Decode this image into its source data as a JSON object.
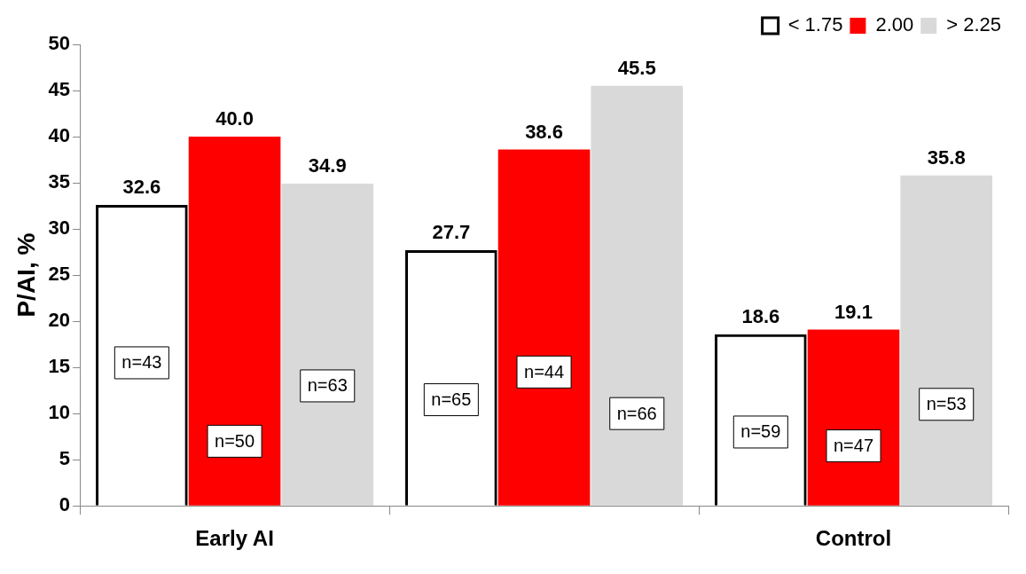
{
  "chart_data": {
    "type": "bar",
    "ylabel": "P/AI, %",
    "categories": [
      "Early AI",
      null,
      "Control"
    ],
    "series": [
      {
        "name": "< 1.75",
        "color": "#000000",
        "values": [
          32.6,
          27.7,
          18.6
        ],
        "value_labels": [
          "32.6",
          "27.7",
          "18.6"
        ]
      },
      {
        "name": "2.00",
        "color": "#ff0000",
        "values": [
          40.0,
          38.6,
          19.1
        ],
        "value_labels": [
          "40.0",
          "38.6",
          "19.1"
        ]
      },
      {
        "name": "> 2.25",
        "color": "#d9d9d9",
        "values": [
          34.9,
          45.5,
          35.8
        ],
        "value_labels": [
          "34.9",
          "45.5",
          "35.8"
        ]
      }
    ],
    "ylim": [
      0,
      50
    ],
    "yticks": [
      0,
      5,
      10,
      15,
      20,
      25,
      30,
      35,
      40,
      45,
      50
    ],
    "grid": false,
    "legend": "top right",
    "annotations": [
      "n=43",
      "n=50",
      "n=63",
      "n=65",
      "n=44",
      "n=66",
      "n=59",
      "n=47",
      "n=53"
    ]
  }
}
